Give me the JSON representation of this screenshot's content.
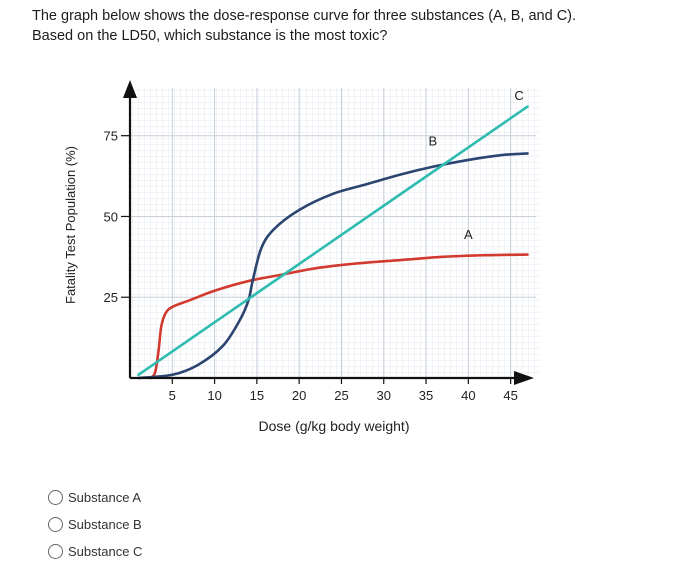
{
  "question": {
    "line1": "The graph below shows the dose-response curve for three substances (A, B, and C).",
    "line2": "Based on the LD50, which substance is the most toxic?"
  },
  "chart_data": {
    "type": "line",
    "xlabel": "Dose (g/kg body weight)",
    "ylabel": "Fatality Test Population (%)",
    "xticks": [
      5,
      10,
      15,
      20,
      25,
      30,
      35,
      40,
      45
    ],
    "yticks": [
      25,
      50,
      75
    ],
    "xlim": [
      0,
      48
    ],
    "ylim": [
      0,
      91
    ],
    "grid": true,
    "series": [
      {
        "name": "A",
        "color": "#d23a30",
        "points": [
          [
            2.5,
            0
          ],
          [
            3,
            2
          ],
          [
            3.4,
            9
          ],
          [
            3.7,
            16
          ],
          [
            4.2,
            20
          ],
          [
            5,
            22
          ],
          [
            7,
            24
          ],
          [
            10,
            27
          ],
          [
            14,
            30
          ],
          [
            18,
            32
          ],
          [
            22,
            34
          ],
          [
            27,
            35.5
          ],
          [
            32,
            36.5
          ],
          [
            37,
            37.5
          ],
          [
            42,
            38
          ],
          [
            47,
            38.2
          ]
        ]
      },
      {
        "name": "B",
        "color": "#2b4470",
        "points": [
          [
            1,
            0
          ],
          [
            5,
            1
          ],
          [
            8,
            4
          ],
          [
            11,
            10
          ],
          [
            13,
            18
          ],
          [
            14,
            24
          ],
          [
            14.5,
            30
          ],
          [
            15.5,
            40
          ],
          [
            17,
            46
          ],
          [
            20,
            52
          ],
          [
            24,
            57
          ],
          [
            28,
            60
          ],
          [
            32,
            63
          ],
          [
            36,
            65.5
          ],
          [
            40,
            67.5
          ],
          [
            44,
            69
          ],
          [
            47,
            69.5
          ]
        ]
      },
      {
        "name": "C",
        "color": "#2ebbb0",
        "points": [
          [
            1,
            1
          ],
          [
            47,
            84
          ]
        ]
      }
    ],
    "annotations": [
      {
        "text": "A",
        "x": 40,
        "y": 43
      },
      {
        "text": "B",
        "x": 35.8,
        "y": 72
      },
      {
        "text": "C",
        "x": 46,
        "y": 86
      }
    ]
  },
  "options": [
    {
      "label": "Substance A"
    },
    {
      "label": "Substance B"
    },
    {
      "label": "Substance C"
    }
  ]
}
